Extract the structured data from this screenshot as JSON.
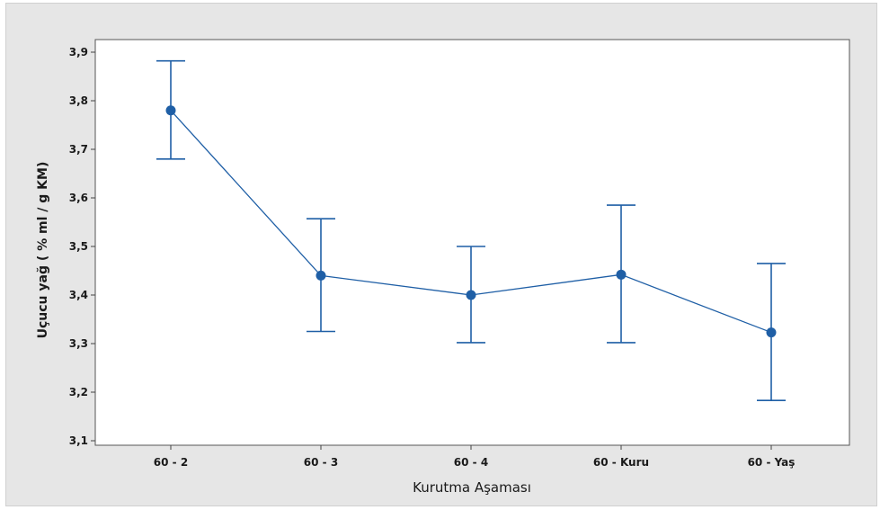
{
  "chart_data": {
    "type": "line",
    "title": "",
    "xlabel": "Kurutma Aşaması",
    "ylabel": "Uçucu yağ ( % ml / g KM)",
    "categories": [
      "60 - 2",
      "60 - 3",
      "60 - 4",
      "60 - Kuru",
      "60 - Yaş"
    ],
    "series": [
      {
        "values": [
          3.78,
          3.44,
          3.4,
          3.442,
          3.323
        ],
        "lower": [
          3.68,
          3.325,
          3.302,
          3.302,
          3.183
        ],
        "upper": [
          3.882,
          3.557,
          3.5,
          3.585,
          3.465
        ]
      }
    ],
    "ylim": [
      3.1,
      3.9
    ],
    "yticks": [
      "3,1",
      "3,2",
      "3,3",
      "3,4",
      "3,5",
      "3,6",
      "3,7",
      "3,8",
      "3,9"
    ],
    "grid": false,
    "legend": "none",
    "colors": {
      "series": "#1f5fa6",
      "background": "#e6e6e6",
      "plot": "#ffffff",
      "axis": "#444444"
    }
  }
}
